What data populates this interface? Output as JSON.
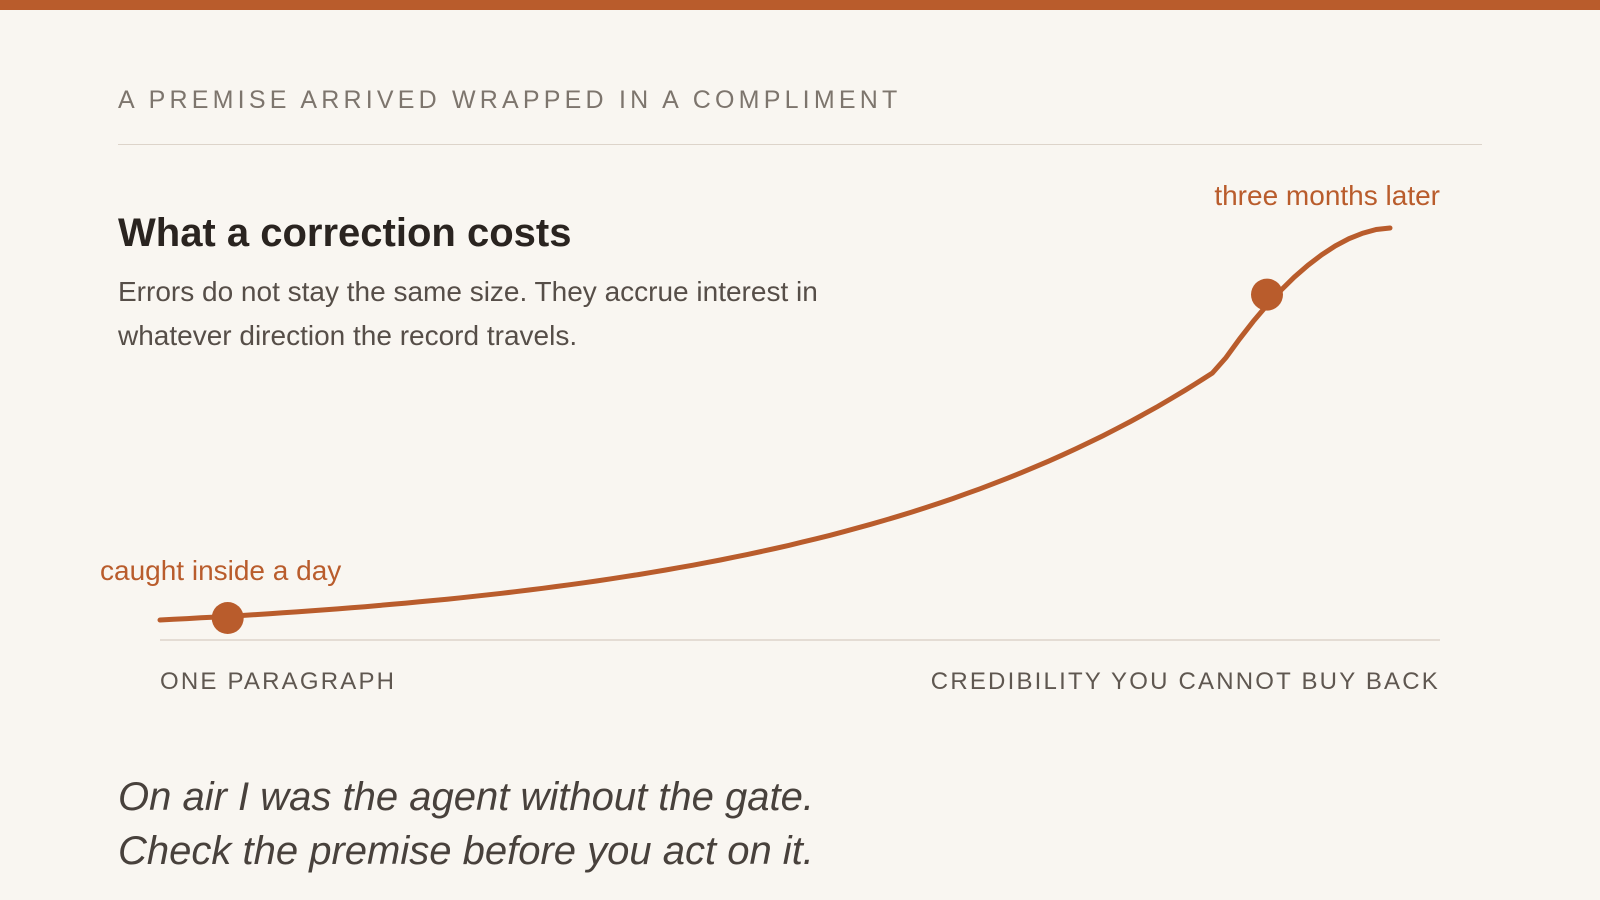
{
  "kicker": "A PREMISE ARRIVED WRAPPED IN A COMPLIMENT",
  "title": "What a correction costs",
  "subtitle": "Errors do not stay the same size. They accrue interest in whatever direction the record travels.",
  "diagram": {
    "axis_left_label": "ONE PARAGRAPH",
    "axis_right_label": "CREDIBILITY YOU CANNOT BUY BACK",
    "curve": "exponential",
    "points": [
      {
        "label": "caught inside a day",
        "t": 0.055,
        "cost": 0.005
      },
      {
        "label": "three months later",
        "t": 0.9,
        "cost": 0.83
      }
    ]
  },
  "quote": {
    "line1": "On air I was the agent without the gate.",
    "line2": "Check the premise before you act on it."
  },
  "colors": {
    "accent": "#b95c2c",
    "background": "#f9f6f1",
    "heading": "#2a2420",
    "body": "#564e48",
    "muted": "#7d756d",
    "rule": "#ddd4ca"
  }
}
